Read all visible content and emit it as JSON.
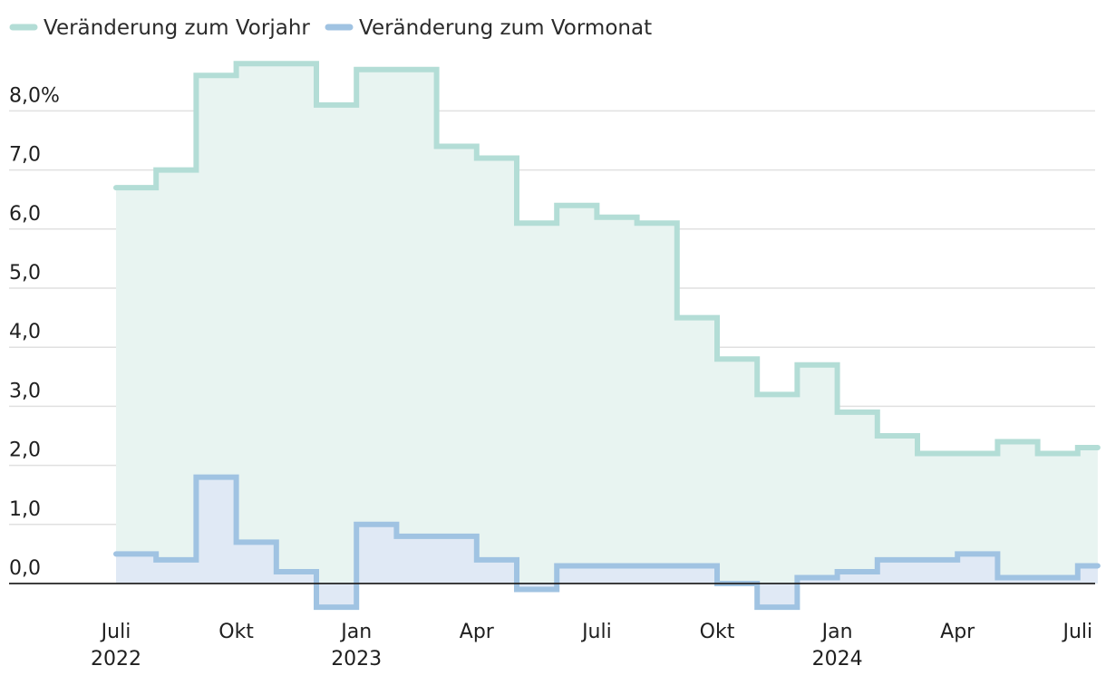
{
  "chart_data": {
    "type": "area",
    "step": true,
    "x": [
      "2022-07",
      "2022-08",
      "2022-09",
      "2022-10",
      "2022-11",
      "2022-12",
      "2023-01",
      "2023-02",
      "2023-03",
      "2023-04",
      "2023-05",
      "2023-06",
      "2023-07",
      "2023-08",
      "2023-09",
      "2023-10",
      "2023-11",
      "2023-12",
      "2024-01",
      "2024-02",
      "2024-03",
      "2024-04",
      "2024-05",
      "2024-06",
      "2024-07"
    ],
    "series": [
      {
        "name": "Veränderung zum Vorjahr",
        "color": "#b3ddd6",
        "fill": "#e8f4f1",
        "values": [
          6.7,
          7.0,
          8.6,
          8.8,
          8.8,
          8.1,
          8.7,
          8.7,
          7.4,
          7.2,
          6.1,
          6.4,
          6.2,
          6.1,
          4.5,
          3.8,
          3.2,
          3.7,
          2.9,
          2.5,
          2.2,
          2.2,
          2.4,
          2.2,
          2.3
        ]
      },
      {
        "name": "Veränderung zum Vormonat",
        "color": "#a0c3e2",
        "fill": "#e0e9f5",
        "values": [
          0.5,
          0.4,
          1.8,
          0.7,
          0.2,
          -0.4,
          1.0,
          0.8,
          0.8,
          0.4,
          -0.1,
          0.3,
          0.3,
          0.3,
          0.3,
          0.0,
          -0.4,
          0.1,
          0.2,
          0.4,
          0.4,
          0.5,
          0.1,
          0.1,
          0.3
        ]
      }
    ],
    "ylim": [
      -0.6,
      8.9
    ],
    "yticks": [
      0,
      1,
      2,
      3,
      4,
      5,
      6,
      7,
      8
    ],
    "ytick_labels": [
      "0,0",
      "1,0",
      "2,0",
      "3,0",
      "4,0",
      "5,0",
      "6,0",
      "7,0",
      "8,0%"
    ],
    "xticks": [
      {
        "index": 0,
        "label": "Juli",
        "year": "2022"
      },
      {
        "index": 3,
        "label": "Okt",
        "year": ""
      },
      {
        "index": 6,
        "label": "Jan",
        "year": "2023"
      },
      {
        "index": 9,
        "label": "Apr",
        "year": ""
      },
      {
        "index": 12,
        "label": "Juli",
        "year": ""
      },
      {
        "index": 15,
        "label": "Okt",
        "year": ""
      },
      {
        "index": 18,
        "label": "Jan",
        "year": "2024"
      },
      {
        "index": 21,
        "label": "Apr",
        "year": ""
      },
      {
        "index": 24,
        "label": "Juli",
        "year": ""
      }
    ],
    "grid": true,
    "legend_position": "top-left",
    "gridline_color": "#e0e0e0",
    "zero_line_color": "#222222"
  }
}
